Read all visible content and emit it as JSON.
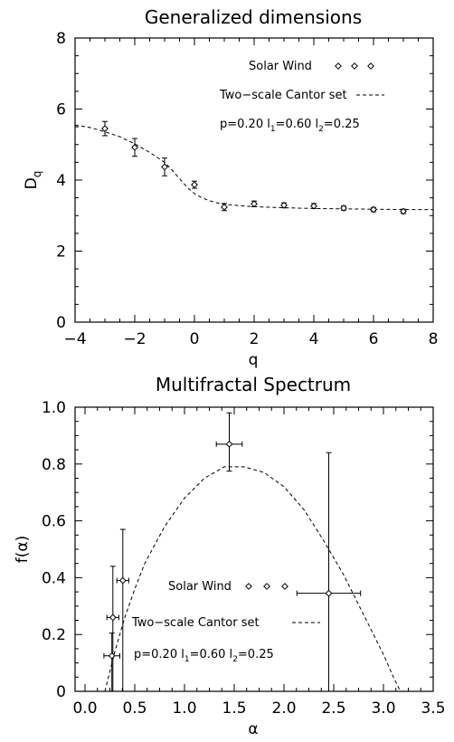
{
  "chart_data": [
    {
      "type": "scatter",
      "title": "Generalized dimensions",
      "xlabel": "q",
      "ylabel": "D",
      "ylabel_sub": "q",
      "xlim": [
        -4,
        8
      ],
      "ylim": [
        0,
        8
      ],
      "xticks": [
        -4,
        -2,
        0,
        2,
        4,
        6,
        8
      ],
      "yticks": [
        0,
        2,
        4,
        6,
        8
      ],
      "xtick_labels": [
        "−4",
        "−2",
        "0",
        "2",
        "4",
        "6",
        "8"
      ],
      "ytick_labels": [
        "0",
        "2",
        "4",
        "6",
        "8"
      ],
      "grid": false,
      "legend": {
        "series_label": "Solar Wind",
        "model_label": "Two−scale Cantor set",
        "params": {
          "p": "p=0.20 l",
          "s1": "1",
          "v1": "=0.60 l",
          "s2": "2",
          "v2": "=0.25"
        }
      },
      "series": [
        {
          "name": "Solar Wind",
          "x": [
            -3,
            -2,
            -1,
            0,
            1,
            2,
            3,
            4,
            5,
            6,
            7
          ],
          "y": [
            5.45,
            4.92,
            4.37,
            3.87,
            3.24,
            3.33,
            3.29,
            3.27,
            3.21,
            3.17,
            3.12
          ],
          "yerr": [
            0.2,
            0.25,
            0.25,
            0.1,
            0.1,
            0.08,
            0.07,
            0.07,
            0.06,
            0.06,
            0.06
          ]
        }
      ],
      "model": {
        "name": "Two−scale Cantor set",
        "x": [
          -4,
          -3.5,
          -3,
          -2.5,
          -2,
          -1.5,
          -1,
          -0.75,
          -0.5,
          -0.25,
          0,
          0.25,
          0.5,
          0.75,
          1,
          1.5,
          2,
          3,
          4,
          5,
          6,
          7,
          8
        ],
        "y": [
          5.55,
          5.48,
          5.36,
          5.22,
          5.02,
          4.78,
          4.5,
          4.28,
          4.04,
          3.8,
          3.62,
          3.5,
          3.42,
          3.36,
          3.32,
          3.28,
          3.25,
          3.22,
          3.2,
          3.19,
          3.18,
          3.17,
          3.17
        ]
      }
    },
    {
      "type": "scatter",
      "title": "Multifractal Spectrum",
      "xlabel": "α",
      "ylabel": "f(α)",
      "xlim": [
        -0.1,
        3.5
      ],
      "ylim": [
        0,
        1.0
      ],
      "xticks": [
        0,
        0.5,
        1.0,
        1.5,
        2.0,
        2.5,
        3.0,
        3.5
      ],
      "yticks": [
        0,
        0.2,
        0.4,
        0.6,
        0.8,
        1.0
      ],
      "xtick_labels": [
        "0.0",
        "0.5",
        "1.0",
        "1.5",
        "2.0",
        "2.5",
        "3.0",
        "3.5"
      ],
      "ytick_labels": [
        "0",
        "0.2",
        "0.4",
        "0.6",
        "0.8",
        "1.0"
      ],
      "grid": false,
      "legend": {
        "series_label": "Solar Wind",
        "model_label": "Two−scale Cantor set",
        "params": {
          "p": "p=0.20 l",
          "s1": "1",
          "v1": "=0.60 l",
          "s2": "2",
          "v2": "=0.25"
        }
      },
      "series": [
        {
          "name": "Solar Wind",
          "x": [
            0.27,
            0.28,
            0.38,
            1.45,
            2.45
          ],
          "y": [
            0.125,
            0.26,
            0.39,
            0.87,
            0.345
          ],
          "xerr_lo": [
            0.08,
            0.06,
            0.06,
            0.13,
            0.32
          ],
          "xerr_hi": [
            0.08,
            0.06,
            0.06,
            0.13,
            0.32
          ],
          "yerr_lo": [
            0.125,
            0.26,
            0.39,
            0.095,
            0.345
          ],
          "yerr_hi": [
            0.08,
            0.18,
            0.18,
            0.11,
            0.495
          ]
        }
      ],
      "model": {
        "name": "Two−scale Cantor set",
        "x": [
          0.2,
          0.25,
          0.3,
          0.4,
          0.5,
          0.6,
          0.8,
          1.0,
          1.2,
          1.4,
          1.6,
          1.8,
          2.0,
          2.2,
          2.4,
          2.6,
          2.8,
          3.0,
          3.1,
          3.17
        ],
        "y": [
          0.0,
          0.07,
          0.14,
          0.26,
          0.36,
          0.45,
          0.58,
          0.68,
          0.75,
          0.79,
          0.79,
          0.77,
          0.72,
          0.64,
          0.53,
          0.41,
          0.27,
          0.13,
          0.05,
          0.0
        ]
      }
    }
  ]
}
